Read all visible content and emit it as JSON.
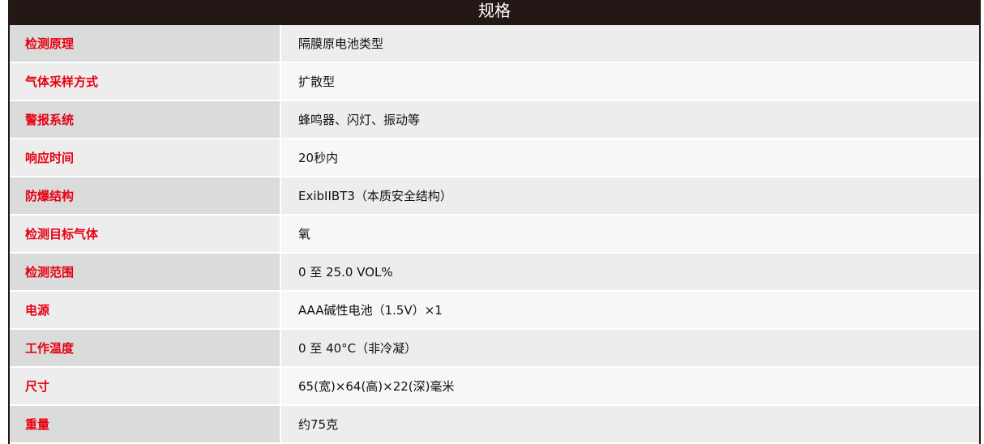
{
  "title": "规格",
  "rows": [
    {
      "label": "检测原理",
      "value": "隔膜原电池类型"
    },
    {
      "label": "气体采样方式",
      "value": "扩散型"
    },
    {
      "label": "警报系统",
      "value": "蜂鸣器、闪灯、振动等"
    },
    {
      "label": "响应时间",
      "value": "20秒内"
    },
    {
      "label": "防爆结构",
      "value": "ExibIIBT3（本质安全结构）"
    },
    {
      "label": "检测目标气体",
      "value": "氧"
    },
    {
      "label": "检测范围",
      "value": "0 至 25.0 VOL%"
    },
    {
      "label": "电源",
      "value": "AAA碱性电池（1.5V）×1"
    },
    {
      "label": "工作温度",
      "value": "0 至 40°C（非冷凝）"
    },
    {
      "label": "尺寸",
      "value": "65(宽)×64(高)×22(深)毫米"
    },
    {
      "label": "重量",
      "value": "约75克"
    }
  ]
}
